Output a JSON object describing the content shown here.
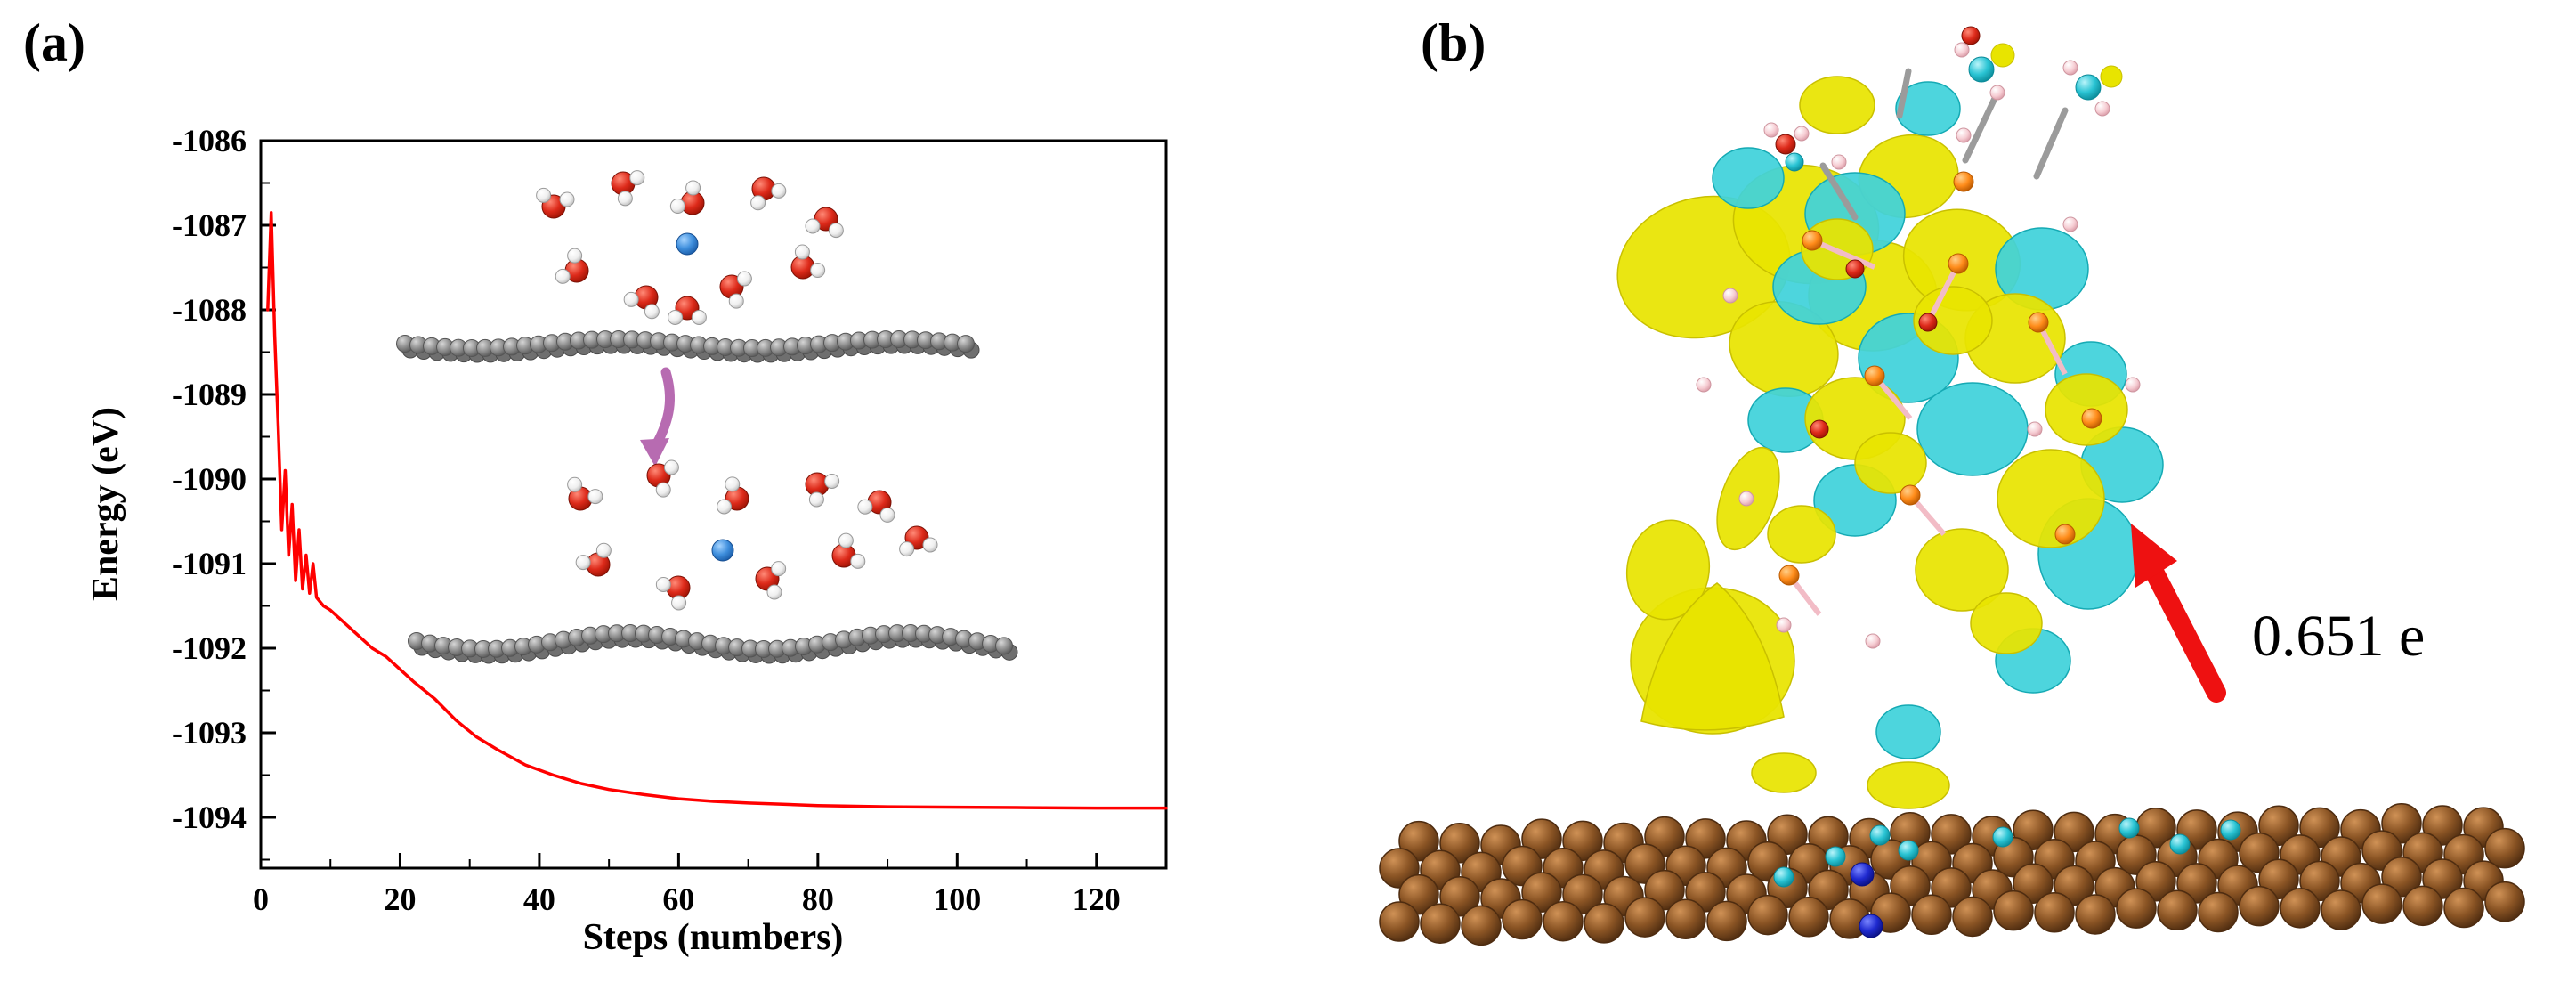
{
  "figure": {
    "panel_a": {
      "label": "(a)"
    },
    "panel_b": {
      "label": "(b)",
      "annotation": "0.651 e"
    }
  },
  "chart_data": {
    "type": "line",
    "title": "",
    "xlabel": "Steps (numbers)",
    "ylabel": "Energy (eV)",
    "xlim": [
      0,
      130
    ],
    "ylim": [
      -1094.6,
      -1086
    ],
    "x_ticks": [
      0,
      20,
      40,
      60,
      80,
      100,
      120
    ],
    "y_ticks": [
      -1086,
      -1087,
      -1088,
      -1089,
      -1090,
      -1091,
      -1092,
      -1093,
      -1094
    ],
    "x_minor_step": 10,
    "y_minor_step": 0.5,
    "grid": false,
    "legend": false,
    "series": [
      {
        "name": "energy",
        "color": "#ff0000",
        "x": [
          1,
          1.5,
          2,
          2.5,
          3,
          3.5,
          4,
          4.5,
          5,
          5.5,
          6,
          6.5,
          7,
          7.5,
          8,
          9,
          10,
          12,
          14,
          16,
          18,
          20,
          22,
          25,
          28,
          31,
          34,
          38,
          42,
          46,
          50,
          55,
          60,
          65,
          70,
          80,
          90,
          100,
          110,
          120,
          130
        ],
        "y": [
          -1088.0,
          -1086.85,
          -1088.3,
          -1089.4,
          -1090.6,
          -1089.9,
          -1090.9,
          -1090.3,
          -1091.2,
          -1090.6,
          -1091.3,
          -1090.9,
          -1091.35,
          -1091.0,
          -1091.4,
          -1091.5,
          -1091.55,
          -1091.7,
          -1091.85,
          -1092.0,
          -1092.1,
          -1092.25,
          -1092.4,
          -1092.6,
          -1092.85,
          -1093.05,
          -1093.2,
          -1093.38,
          -1093.5,
          -1093.6,
          -1093.67,
          -1093.73,
          -1093.78,
          -1093.81,
          -1093.83,
          -1093.86,
          -1093.875,
          -1093.88,
          -1093.885,
          -1093.89,
          -1093.89
        ]
      }
    ]
  },
  "colors": {
    "axis": "#000000",
    "series_line": "#ff0000",
    "isosurface_positive": "#e8e400",
    "isosurface_negative": "#3fd2da",
    "substrate": "#8a5424",
    "oxygen": "#dd2a1a",
    "hydrogen": "#f4f4f4",
    "dopant_blue": "#3f8fdd",
    "carbon_gray": "#8f8f8f",
    "arrow_panel_a": "#b76bb1",
    "arrow_panel_b": "#ee1111",
    "annotation_text": "#000000"
  }
}
